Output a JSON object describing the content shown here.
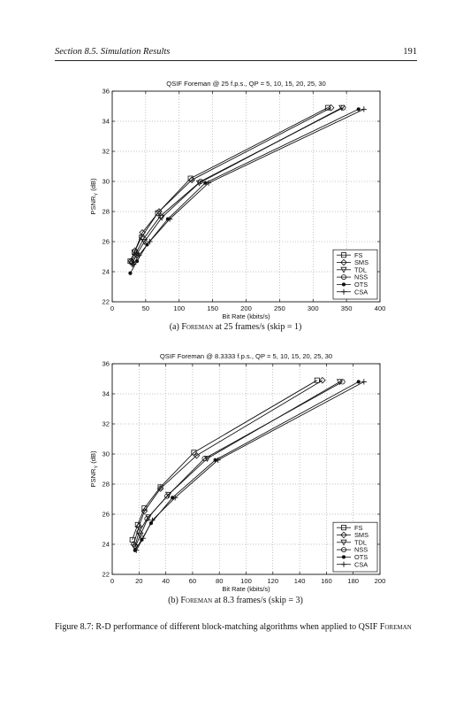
{
  "header": {
    "section": "Section 8.5.  Simulation Results",
    "page": "191"
  },
  "figure": {
    "caption_label": "Figure 8.7:",
    "caption_text": "R-D performance of different block-matching algorithms when applied to QSIF",
    "caption_name": "Foreman"
  },
  "chart_data": [
    {
      "type": "line",
      "title": "QSIF Foreman @ 25 f.p.s., QP = 5, 10, 15, 20, 25, 30",
      "xlabel": "Bit Rate (kbits/s)",
      "ylabel": "PSNR",
      "ylabel_sub": "Y",
      "ylabel_unit": " (dB)",
      "xlim": [
        0,
        400
      ],
      "ylim": [
        22,
        36
      ],
      "xticks": [
        0,
        50,
        100,
        150,
        200,
        250,
        300,
        350,
        400
      ],
      "yticks": [
        22,
        24,
        26,
        28,
        30,
        32,
        34,
        36
      ],
      "grid": true,
      "legend_position": "bottom-right",
      "caption": {
        "prefix": "(a) ",
        "name": "Foreman",
        "suffix": " at 25 frames/s (skip = 1)"
      },
      "series": [
        {
          "name": "FS",
          "marker": "square",
          "x": [
            27,
            33,
            44,
            68,
            117,
            322
          ],
          "y": [
            24.7,
            25.3,
            26.3,
            27.9,
            30.2,
            34.9
          ]
        },
        {
          "name": "SMS",
          "marker": "diamond",
          "x": [
            28,
            34,
            45,
            70,
            119,
            327
          ],
          "y": [
            24.7,
            25.4,
            26.6,
            28.0,
            30.1,
            34.9
          ]
        },
        {
          "name": "TDL",
          "marker": "triangle",
          "x": [
            30,
            36,
            48,
            74,
            130,
            343
          ],
          "y": [
            24.5,
            25.1,
            26.0,
            27.6,
            29.9,
            34.9
          ]
        },
        {
          "name": "NSS",
          "marker": "circle",
          "x": [
            29,
            35,
            47,
            72,
            132,
            345
          ],
          "y": [
            24.6,
            25.2,
            26.2,
            27.7,
            30.0,
            34.9
          ]
        },
        {
          "name": "OTS",
          "marker": "star",
          "x": [
            27,
            37,
            52,
            83,
            139,
            368
          ],
          "y": [
            23.9,
            24.7,
            25.8,
            27.5,
            29.9,
            34.8
          ]
        },
        {
          "name": "CSA",
          "marker": "plus",
          "x": [
            32,
            40,
            56,
            86,
            144,
            376
          ],
          "y": [
            24.5,
            25.1,
            26.0,
            27.5,
            29.9,
            34.8
          ]
        }
      ]
    },
    {
      "type": "line",
      "title": "QSIF Foreman @ 8.3333 f.p.s., QP = 5, 10, 15, 20, 25, 30",
      "xlabel": "Bit Rate (kbits/s)",
      "ylabel": "PSNR",
      "ylabel_sub": "Y",
      "ylabel_unit": " (dB)",
      "xlim": [
        0,
        200
      ],
      "ylim": [
        22,
        36
      ],
      "xticks": [
        0,
        20,
        40,
        60,
        80,
        100,
        120,
        140,
        160,
        180,
        200
      ],
      "yticks": [
        22,
        24,
        26,
        28,
        30,
        32,
        34,
        36
      ],
      "grid": true,
      "legend_position": "bottom-right",
      "caption": {
        "prefix": "(b) ",
        "name": "Foreman",
        "suffix": " at 8.3 frames/s (skip = 3)"
      },
      "series": [
        {
          "name": "FS",
          "marker": "square",
          "x": [
            15,
            19,
            24,
            36,
            61,
            153
          ],
          "y": [
            24.3,
            25.3,
            26.4,
            27.8,
            30.1,
            34.9
          ]
        },
        {
          "name": "SMS",
          "marker": "diamond",
          "x": [
            16,
            20,
            24,
            36,
            63,
            157
          ],
          "y": [
            24.0,
            25.2,
            26.2,
            27.7,
            29.9,
            34.9
          ]
        },
        {
          "name": "TDL",
          "marker": "triangle",
          "x": [
            17,
            21,
            27,
            42,
            71,
            170
          ],
          "y": [
            23.8,
            24.6,
            25.8,
            27.3,
            29.7,
            34.8
          ]
        },
        {
          "name": "NSS",
          "marker": "circle",
          "x": [
            17,
            20,
            26,
            41,
            69,
            172
          ],
          "y": [
            23.9,
            24.8,
            25.7,
            27.2,
            29.7,
            34.8
          ]
        },
        {
          "name": "OTS",
          "marker": "star",
          "x": [
            17,
            22,
            29,
            45,
            77,
            184
          ],
          "y": [
            23.6,
            24.3,
            25.4,
            27.1,
            29.6,
            34.8
          ]
        },
        {
          "name": "CSA",
          "marker": "plus",
          "x": [
            18,
            23,
            30,
            47,
            79,
            188
          ],
          "y": [
            23.6,
            24.4,
            25.6,
            27.1,
            29.6,
            34.8
          ]
        }
      ]
    }
  ]
}
